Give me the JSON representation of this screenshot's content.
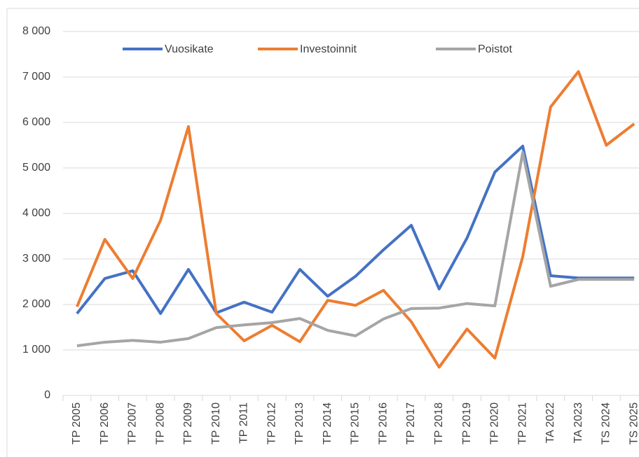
{
  "chart_data": {
    "type": "line",
    "categories": [
      "TP 2005",
      "TP 2006",
      "TP 2007",
      "TP 2008",
      "TP 2009",
      "TP 2010",
      "TP 2011",
      "TP 2012",
      "TP 2013",
      "TP 2014",
      "TP 2015",
      "TP 2016",
      "TP 2017",
      "TP 2018",
      "TP 2019",
      "TP 2020",
      "TP 2021",
      "TA 2022",
      "TA 2023",
      "TS 2024",
      "TS 2025"
    ],
    "series": [
      {
        "name": "Vuosikate",
        "color": "#4472c4",
        "values": [
          1800,
          2570,
          2740,
          1800,
          2770,
          1815,
          2050,
          1830,
          2770,
          2180,
          2620,
          3200,
          3740,
          2340,
          3460,
          4910,
          5480,
          2630,
          2580,
          2580,
          2580
        ]
      },
      {
        "name": "Investoinnit",
        "color": "#ed7d31",
        "values": [
          1950,
          3430,
          2570,
          3850,
          5910,
          1800,
          1200,
          1540,
          1180,
          2090,
          1980,
          2310,
          1620,
          620,
          1460,
          820,
          3050,
          6340,
          7120,
          5500,
          5970
        ]
      },
      {
        "name": "Poistot",
        "color": "#a5a5a5",
        "values": [
          1090,
          1170,
          1210,
          1170,
          1250,
          1490,
          1550,
          1600,
          1690,
          1430,
          1310,
          1680,
          1910,
          1920,
          2020,
          1970,
          5340,
          2400,
          2550,
          2550,
          2550
        ]
      }
    ],
    "ylim": [
      0,
      8000
    ],
    "yticks": [
      0,
      {
        "value": 1000,
        "label": "1 000"
      },
      {
        "value": 2000,
        "label": "2 000"
      },
      {
        "value": 3000,
        "label": "3 000"
      },
      {
        "value": 4000,
        "label": "4 000"
      },
      {
        "value": 5000,
        "label": "5 000"
      },
      {
        "value": 6000,
        "label": "6 000"
      },
      {
        "value": 7000,
        "label": "7 000"
      },
      {
        "value": 8000,
        "label": "8 000"
      }
    ],
    "grid": true,
    "legend": "top"
  }
}
